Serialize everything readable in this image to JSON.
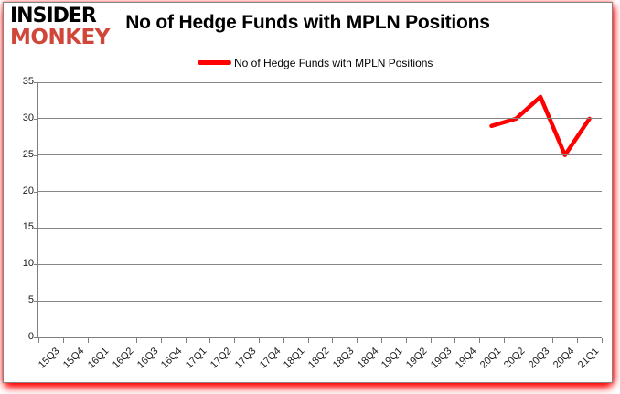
{
  "logo": {
    "line1": "INSIDER",
    "line2": "MONKEY",
    "line1_color": "#000000",
    "line2_color": "#d0473a"
  },
  "header": {
    "title": "No of Hedge Funds with MPLN Positions"
  },
  "legend": {
    "label": "No of Hedge Funds with MPLN Positions",
    "swatch_color": "#ff0000"
  },
  "chart_data": {
    "type": "line",
    "title": "No of Hedge Funds with MPLN Positions",
    "categories": [
      "15Q3",
      "15Q4",
      "16Q1",
      "16Q2",
      "16Q3",
      "16Q4",
      "17Q1",
      "17Q2",
      "17Q3",
      "17Q4",
      "18Q1",
      "18Q2",
      "18Q3",
      "18Q4",
      "19Q1",
      "19Q2",
      "19Q3",
      "19Q4",
      "20Q1",
      "20Q2",
      "20Q3",
      "20Q4",
      "21Q1"
    ],
    "series": [
      {
        "name": "No of Hedge Funds with MPLN Positions",
        "color": "#ff0000",
        "values": [
          null,
          null,
          null,
          null,
          null,
          null,
          null,
          null,
          null,
          null,
          null,
          null,
          null,
          null,
          null,
          null,
          null,
          null,
          29,
          30,
          33,
          25,
          30
        ]
      }
    ],
    "xlabel": "",
    "ylabel": "",
    "ylim": [
      0,
      35
    ],
    "yticks": [
      0,
      5,
      10,
      15,
      20,
      25,
      30,
      35
    ],
    "grid": true,
    "legend_position": "top-center"
  },
  "colors": {
    "grid": "#868686",
    "axis": "#7f7f7f",
    "tick_text": "#1a1a1a",
    "frame_border": "#848484",
    "glow": "#ff0000",
    "background": "#ffffff"
  }
}
